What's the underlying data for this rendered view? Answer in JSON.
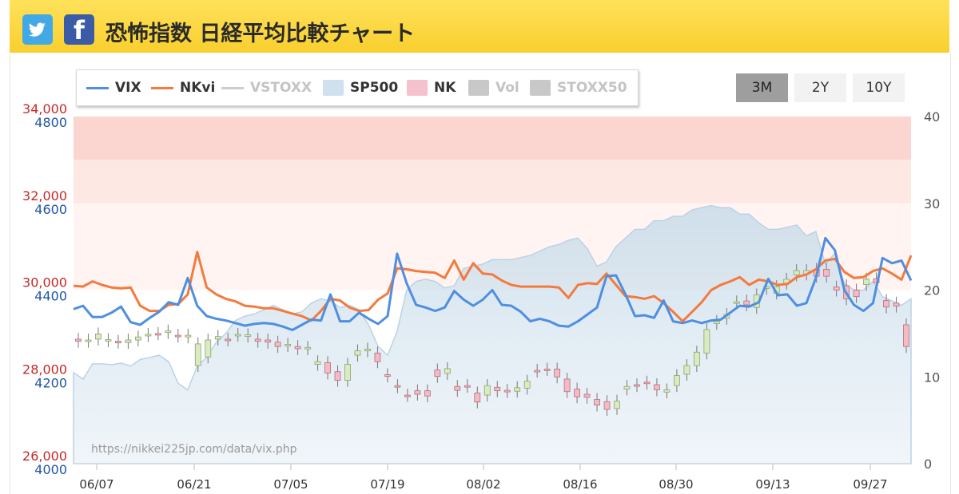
{
  "header": {
    "title": "恐怖指数 日経平均比較チャート",
    "twitter_icon": "twitter-bird-icon",
    "facebook_icon": "facebook-f-icon",
    "facebook_glyph": "f"
  },
  "legend": [
    {
      "label": "VIX",
      "color": "#4f8fe0",
      "kind": "line",
      "active": true
    },
    {
      "label": "NKvi",
      "color": "#f47a3d",
      "kind": "line",
      "active": true
    },
    {
      "label": "VSTOXX",
      "color": "#cccccc",
      "kind": "line",
      "active": false
    },
    {
      "label": "SP500",
      "color": "#cfe0ee",
      "kind": "area",
      "active": true
    },
    {
      "label": "NK",
      "color": "#f5c1cc",
      "kind": "box",
      "active": true
    },
    {
      "label": "Vol",
      "color": "#c8c8c8",
      "kind": "box",
      "active": false
    },
    {
      "label": "STOXX50",
      "color": "#c8c8c8",
      "kind": "box",
      "active": false
    }
  ],
  "range_buttons": [
    {
      "label": "3M",
      "active": true
    },
    {
      "label": "2Y",
      "active": false
    },
    {
      "label": "10Y",
      "active": false
    }
  ],
  "watermark": "https://nikkei225jp.com/data/vix.php",
  "chart_data": {
    "type": "line",
    "nk_axis": {
      "ticks": [
        "34,000",
        "32,000",
        "30,000",
        "28,000",
        "26,000"
      ],
      "range": [
        26000,
        34000
      ],
      "color": "#c62828"
    },
    "sp_axis": {
      "ticks": [
        "4800",
        "4600",
        "4400",
        "4200",
        "4000"
      ],
      "range": [
        4000,
        4800
      ],
      "color": "#1f56a6"
    },
    "vix_axis": {
      "ticks": [
        "40",
        "30",
        "20",
        "10",
        "0"
      ],
      "range": [
        0,
        40
      ]
    },
    "x_labels": [
      "06/07",
      "06/21",
      "07/05",
      "07/19",
      "08/02",
      "08/16",
      "08/30",
      "09/13",
      "09/27"
    ],
    "bands": [
      {
        "from": 35,
        "to": 40,
        "color": "#fbd5d0"
      },
      {
        "from": 30,
        "to": 35,
        "color": "#fde8e4"
      },
      {
        "from": 20,
        "to": 30,
        "color": "#fff4f1"
      }
    ],
    "series": [
      {
        "name": "VIX",
        "color": "#4f8fe0",
        "values": [
          17.8,
          18.2,
          16.9,
          16.9,
          17.4,
          18.1,
          16.3,
          16.0,
          16.8,
          17.5,
          18.6,
          18.3,
          21.4,
          18.2,
          17.0,
          16.7,
          16.5,
          16.2,
          15.9,
          16.1,
          16.2,
          16.1,
          15.8,
          15.4,
          16.0,
          16.6,
          16.5,
          19.5,
          16.4,
          16.4,
          17.4,
          16.7,
          16.1,
          17.0,
          24.2,
          20.8,
          18.3,
          18.0,
          17.6,
          18.0,
          19.9,
          18.9,
          18.2,
          18.9,
          20.0,
          18.3,
          18.2,
          17.5,
          16.4,
          16.7,
          16.4,
          15.9,
          15.8,
          16.4,
          17.2,
          18.0,
          21.6,
          21.7,
          19.5,
          17.0,
          17.1,
          16.8,
          18.8,
          16.4,
          16.2,
          16.5,
          16.2,
          16.5,
          16.6,
          17.4,
          18.2,
          18.1,
          18.6,
          21.3,
          19.4,
          19.5,
          18.2,
          18.5,
          21.4,
          26.0,
          24.6,
          20.0,
          18.3,
          17.6,
          18.5,
          23.7,
          23.1,
          23.4,
          21.1
        ]
      },
      {
        "name": "NKvi",
        "color": "#f47a3d",
        "values": [
          20.5,
          20.4,
          21.0,
          20.6,
          20.3,
          20.2,
          20.3,
          18.2,
          17.6,
          17.6,
          18.3,
          18.4,
          19.5,
          24.4,
          20.3,
          19.5,
          19.0,
          18.7,
          18.2,
          18.1,
          17.9,
          17.9,
          17.6,
          17.3,
          17.0,
          16.5,
          17.6,
          19.0,
          18.8,
          18.0,
          17.6,
          17.7,
          18.9,
          19.6,
          22.5,
          22.4,
          22.2,
          22.1,
          22.0,
          21.4,
          23.4,
          21.2,
          23.1,
          21.9,
          21.8,
          21.1,
          20.6,
          20.4,
          20.4,
          20.4,
          20.4,
          20.3,
          19.1,
          20.6,
          20.8,
          20.7,
          21.9,
          20.6,
          19.3,
          19.2,
          19.0,
          19.3,
          18.5,
          17.5,
          16.4,
          17.5,
          18.6,
          20.0,
          20.6,
          21.0,
          21.5,
          20.6,
          21.2,
          21.0,
          20.6,
          20.7,
          21.5,
          21.8,
          22.4,
          23.4,
          23.6,
          22.1,
          21.4,
          21.5,
          22.2,
          22.5,
          21.9,
          21.2,
          24.0
        ]
      },
      {
        "name": "SP500",
        "color": "#bcd2e4",
        "values": [
          4210,
          4195,
          4230,
          4230,
          4228,
          4232,
          4225,
          4240,
          4245,
          4250,
          4235,
          4185,
          4170,
          4225,
          4245,
          4280,
          4300,
          4330,
          4340,
          4345,
          4355,
          4365,
          4355,
          4345,
          4350,
          4370,
          4380,
          4375,
          4360,
          4365,
          4355,
          4320,
          4270,
          4250,
          4305,
          4400,
          4420,
          4425,
          4420,
          4405,
          4410,
          4450,
          4455,
          4460,
          4470,
          4470,
          4470,
          4475,
          4480,
          4490,
          4500,
          4505,
          4515,
          4520,
          4495,
          4455,
          4465,
          4500,
          4520,
          4540,
          4540,
          4560,
          4560,
          4570,
          4570,
          4585,
          4590,
          4595,
          4590,
          4590,
          4575,
          4575,
          4555,
          4540,
          4540,
          4545,
          4550,
          4525,
          4535,
          4460,
          4485,
          4415,
          4400,
          4400,
          4420,
          4385,
          4375,
          4365,
          4380
        ]
      },
      {
        "name": "NK",
        "candles": [
          [
            28870,
            28820
          ],
          [
            28820,
            28850
          ],
          [
            28870,
            28990
          ],
          [
            28830,
            28860
          ],
          [
            28820,
            28800
          ],
          [
            28790,
            28850
          ],
          [
            28850,
            28920
          ],
          [
            28950,
            28980
          ],
          [
            29000,
            28990
          ],
          [
            29020,
            29060
          ],
          [
            28960,
            28940
          ],
          [
            28920,
            28960
          ],
          [
            28260,
            28760
          ],
          [
            28460,
            28850
          ],
          [
            28870,
            28930
          ],
          [
            28870,
            28850
          ],
          [
            28960,
            28980
          ],
          [
            28940,
            28970
          ],
          [
            28870,
            28820
          ],
          [
            28850,
            28800
          ],
          [
            28800,
            28700
          ],
          [
            28720,
            28750
          ],
          [
            28700,
            28650
          ],
          [
            28650,
            28680
          ],
          [
            28290,
            28350
          ],
          [
            28330,
            28090
          ],
          [
            28120,
            27920
          ],
          [
            27920,
            28290
          ],
          [
            28500,
            28600
          ],
          [
            28600,
            28640
          ],
          [
            28550,
            28350
          ],
          [
            28050,
            28020
          ],
          [
            27800,
            27770
          ],
          [
            27580,
            27570
          ],
          [
            27680,
            27600
          ],
          [
            27680,
            27560
          ],
          [
            28160,
            28010
          ],
          [
            28080,
            28190
          ],
          [
            27780,
            27690
          ],
          [
            27800,
            27780
          ],
          [
            27630,
            27420
          ],
          [
            27580,
            27800
          ],
          [
            27760,
            27680
          ],
          [
            27690,
            27660
          ],
          [
            27670,
            27750
          ],
          [
            27740,
            27900
          ],
          [
            28150,
            28130
          ],
          [
            28180,
            28170
          ],
          [
            28180,
            28000
          ],
          [
            27950,
            27660
          ],
          [
            27720,
            27540
          ],
          [
            27600,
            27530
          ],
          [
            27480,
            27350
          ],
          [
            27430,
            27250
          ],
          [
            27270,
            27440
          ],
          [
            27720,
            27780
          ],
          [
            27820,
            27800
          ],
          [
            27880,
            27850
          ],
          [
            27820,
            27700
          ],
          [
            27650,
            27700
          ],
          [
            27800,
            28030
          ],
          [
            28060,
            28260
          ],
          [
            28260,
            28570
          ],
          [
            28550,
            29090
          ],
          [
            29230,
            29280
          ],
          [
            29350,
            29440
          ],
          [
            29730,
            29730
          ],
          [
            29750,
            29660
          ],
          [
            29600,
            29890
          ],
          [
            30040,
            30080
          ],
          [
            29930,
            30080
          ],
          [
            30160,
            30250
          ],
          [
            30350,
            30450
          ],
          [
            30370,
            30450
          ],
          [
            30480,
            30320
          ],
          [
            30480,
            30320
          ],
          [
            30070,
            30000
          ],
          [
            30100,
            29800
          ],
          [
            30000,
            29850
          ],
          [
            30130,
            30250
          ],
          [
            30260,
            30170
          ],
          [
            29760,
            29610
          ],
          [
            29700,
            29630
          ],
          [
            29200,
            28700
          ]
        ]
      }
    ]
  }
}
